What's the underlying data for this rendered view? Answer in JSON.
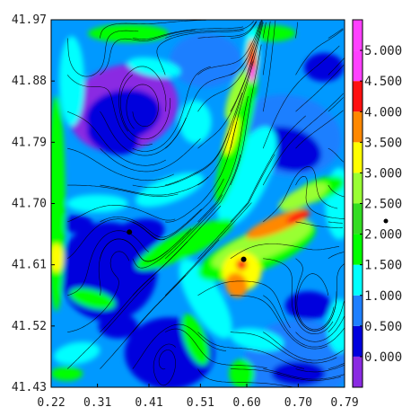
{
  "chart_data": {
    "type": "heatmap",
    "x_ticks": [
      "0.22",
      "0.31",
      "0.41",
      "0.51",
      "0.60",
      "0.70",
      "0.79"
    ],
    "y_ticks": [
      "41.97",
      "41.88",
      "41.79",
      "41.70",
      "41.61",
      "41.52",
      "41.43"
    ],
    "xlim": [
      0.22,
      0.79
    ],
    "ylim": [
      41.43,
      41.97
    ],
    "colorbar": {
      "levels": [
        -0.5,
        0.0,
        0.5,
        1.0,
        1.5,
        2.0,
        2.5,
        3.0,
        3.5,
        4.0,
        4.5,
        5.0,
        5.5
      ],
      "labels": [
        "0.000",
        "0.500",
        "1.000",
        "1.500",
        "2.000",
        "2.500",
        "3.000",
        "3.500",
        "4.000",
        "4.500",
        "5.000"
      ],
      "colors": [
        "#8a2be2",
        "#0000dd",
        "#1e7fff",
        "#00ffff",
        "#00ff00",
        "#33dd22",
        "#99ff33",
        "#ffff00",
        "#ff8800",
        "#ff1010",
        "#ff40ff",
        "#ff40ff"
      ]
    },
    "markers": [
      {
        "x": 0.372,
        "y": 41.658
      },
      {
        "x": 0.594,
        "y": 41.618
      }
    ],
    "background_color": "#0099ff",
    "streamline_color": "#000000"
  }
}
